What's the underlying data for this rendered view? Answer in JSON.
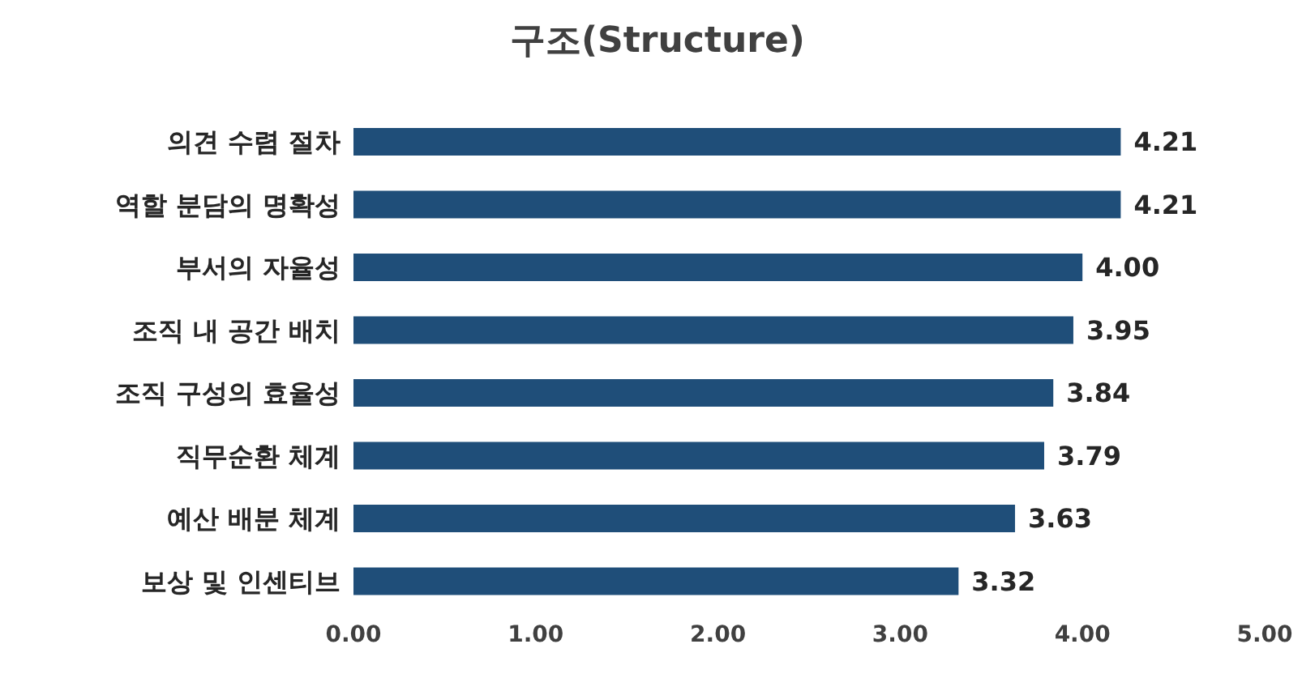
{
  "chart_data": {
    "type": "bar",
    "orientation": "horizontal",
    "title": "구조(Structure)",
    "categories": [
      "의견 수렴 절차",
      "역할 분담의 명확성",
      "부서의 자율성",
      "조직 내 공간 배치",
      "조직 구성의 효율성",
      "직무순환 체계",
      "예산 배분 체계",
      "보상 및 인센티브"
    ],
    "values": [
      4.21,
      4.21,
      4.0,
      3.95,
      3.84,
      3.79,
      3.63,
      3.32
    ],
    "value_labels": [
      "4.21",
      "4.21",
      "4.00",
      "3.95",
      "3.84",
      "3.79",
      "3.63",
      "3.32"
    ],
    "color": "#1f4e79",
    "xlim": [
      0,
      5
    ],
    "xticks": [
      {
        "value": 0,
        "label": "0.00"
      },
      {
        "value": 1,
        "label": "1.00"
      },
      {
        "value": 2,
        "label": "2.00"
      },
      {
        "value": 3,
        "label": "3.00"
      },
      {
        "value": 4,
        "label": "4.00"
      },
      {
        "value": 5,
        "label": "5.00"
      }
    ],
    "grid": false,
    "legend": false
  }
}
